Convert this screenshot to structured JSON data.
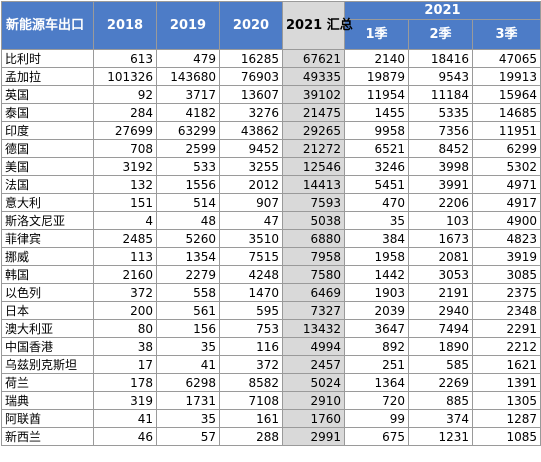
{
  "table": {
    "header": {
      "region": "新能源车出口",
      "y2018": "2018",
      "y2019": "2019",
      "y2020": "2020",
      "y2021_total": "2021 汇总",
      "y2021_group": "2021",
      "q1": "1季",
      "q2": "2季",
      "q3": "3季"
    },
    "rows": [
      {
        "country": "比利时",
        "v2018": "613",
        "v2019": "479",
        "v2020": "16285",
        "total2021": "67621",
        "q1": "2140",
        "q2": "18416",
        "q3": "47065"
      },
      {
        "country": "孟加拉",
        "v2018": "101326",
        "v2019": "143680",
        "v2020": "76903",
        "total2021": "49335",
        "q1": "19879",
        "q2": "9543",
        "q3": "19913"
      },
      {
        "country": "英国",
        "v2018": "92",
        "v2019": "3717",
        "v2020": "13607",
        "total2021": "39102",
        "q1": "11954",
        "q2": "11184",
        "q3": "15964"
      },
      {
        "country": "泰国",
        "v2018": "284",
        "v2019": "4182",
        "v2020": "3276",
        "total2021": "21475",
        "q1": "1455",
        "q2": "5335",
        "q3": "14685"
      },
      {
        "country": "印度",
        "v2018": "27699",
        "v2019": "63299",
        "v2020": "43862",
        "total2021": "29265",
        "q1": "9958",
        "q2": "7356",
        "q3": "11951"
      },
      {
        "country": "德国",
        "v2018": "708",
        "v2019": "2599",
        "v2020": "9452",
        "total2021": "21272",
        "q1": "6521",
        "q2": "8452",
        "q3": "6299"
      },
      {
        "country": "美国",
        "v2018": "3192",
        "v2019": "533",
        "v2020": "3255",
        "total2021": "12546",
        "q1": "3246",
        "q2": "3998",
        "q3": "5302"
      },
      {
        "country": "法国",
        "v2018": "132",
        "v2019": "1556",
        "v2020": "2012",
        "total2021": "14413",
        "q1": "5451",
        "q2": "3991",
        "q3": "4971"
      },
      {
        "country": "意大利",
        "v2018": "151",
        "v2019": "514",
        "v2020": "907",
        "total2021": "7593",
        "q1": "470",
        "q2": "2206",
        "q3": "4917"
      },
      {
        "country": "斯洛文尼亚",
        "v2018": "4",
        "v2019": "48",
        "v2020": "47",
        "total2021": "5038",
        "q1": "35",
        "q2": "103",
        "q3": "4900"
      },
      {
        "country": "菲律宾",
        "v2018": "2485",
        "v2019": "5260",
        "v2020": "3510",
        "total2021": "6880",
        "q1": "384",
        "q2": "1673",
        "q3": "4823"
      },
      {
        "country": "挪威",
        "v2018": "113",
        "v2019": "1354",
        "v2020": "7515",
        "total2021": "7958",
        "q1": "1958",
        "q2": "2081",
        "q3": "3919"
      },
      {
        "country": "韩国",
        "v2018": "2160",
        "v2019": "2279",
        "v2020": "4248",
        "total2021": "7580",
        "q1": "1442",
        "q2": "3053",
        "q3": "3085"
      },
      {
        "country": "以色列",
        "v2018": "372",
        "v2019": "558",
        "v2020": "1470",
        "total2021": "6469",
        "q1": "1903",
        "q2": "2191",
        "q3": "2375"
      },
      {
        "country": "日本",
        "v2018": "200",
        "v2019": "561",
        "v2020": "595",
        "total2021": "7327",
        "q1": "2039",
        "q2": "2940",
        "q3": "2348"
      },
      {
        "country": "澳大利亚",
        "v2018": "80",
        "v2019": "156",
        "v2020": "753",
        "total2021": "13432",
        "q1": "3647",
        "q2": "7494",
        "q3": "2291"
      },
      {
        "country": "中国香港",
        "v2018": "38",
        "v2019": "35",
        "v2020": "116",
        "total2021": "4994",
        "q1": "892",
        "q2": "1890",
        "q3": "2212"
      },
      {
        "country": "乌兹别克斯坦",
        "v2018": "17",
        "v2019": "41",
        "v2020": "372",
        "total2021": "2457",
        "q1": "251",
        "q2": "585",
        "q3": "1621"
      },
      {
        "country": "荷兰",
        "v2018": "178",
        "v2019": "6298",
        "v2020": "8582",
        "total2021": "5024",
        "q1": "1364",
        "q2": "2269",
        "q3": "1391"
      },
      {
        "country": "瑞典",
        "v2018": "319",
        "v2019": "1731",
        "v2020": "7108",
        "total2021": "2910",
        "q1": "720",
        "q2": "885",
        "q3": "1305"
      },
      {
        "country": "阿联酋",
        "v2018": "41",
        "v2019": "35",
        "v2020": "161",
        "total2021": "1760",
        "q1": "99",
        "q2": "374",
        "q3": "1287"
      },
      {
        "country": "新西兰",
        "v2018": "46",
        "v2019": "57",
        "v2020": "288",
        "total2021": "2991",
        "q1": "675",
        "q2": "1231",
        "q3": "1085"
      }
    ]
  }
}
